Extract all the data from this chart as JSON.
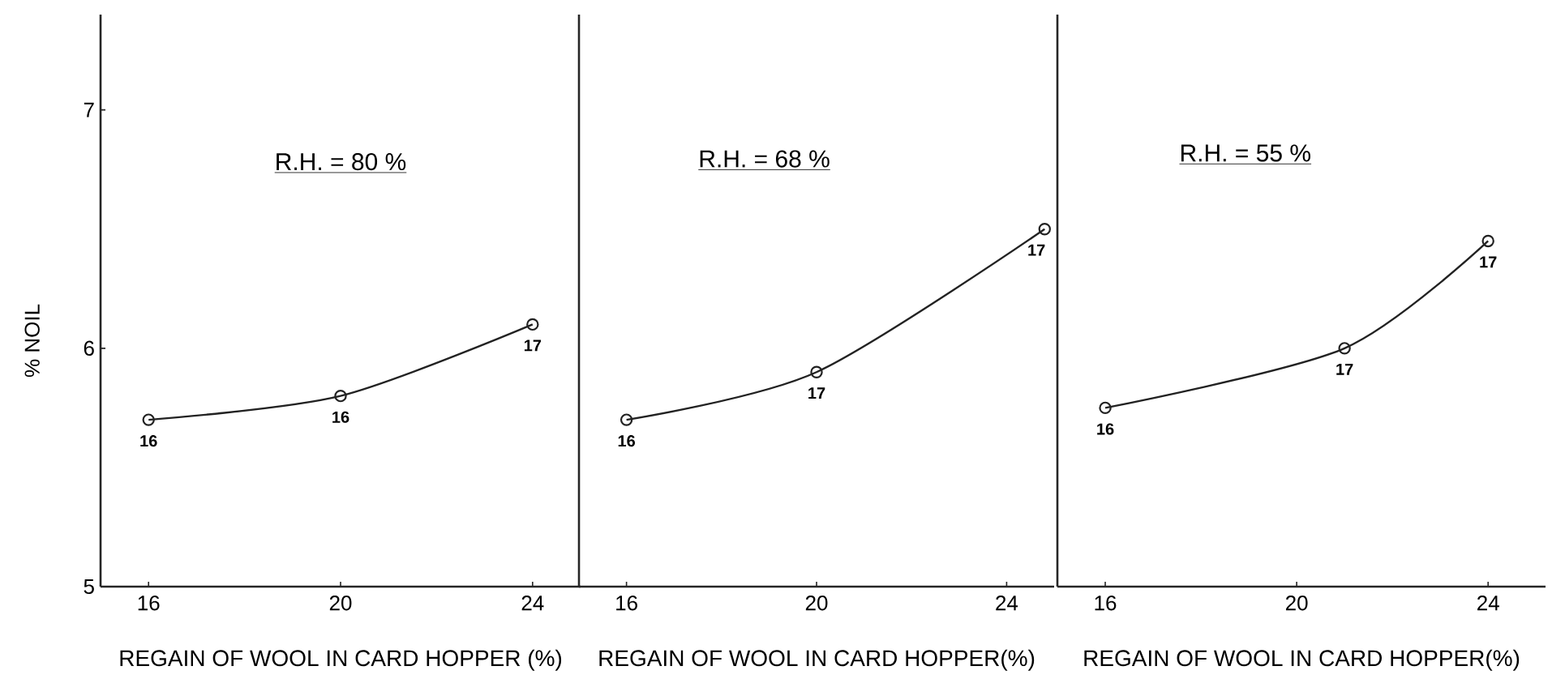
{
  "chart_data": [
    {
      "type": "line",
      "x": [
        16,
        20,
        24
      ],
      "values": [
        5.7,
        5.8,
        6.1
      ],
      "color": "#222222",
      "marker": "circle",
      "xlim": [
        15,
        25
      ],
      "xticks": [
        16,
        20,
        24
      ],
      "ylim": [
        5,
        7.4
      ],
      "yticks": [
        5,
        6,
        7
      ],
      "xlabel": "REGAIN OF WOOL IN CARD HOPPER (%)",
      "ylabel": "% NOIL",
      "annotations": [
        "R.H. = 80 %",
        {
          "text": "16",
          "x": 16,
          "y": 5.7
        },
        {
          "text": "16",
          "x": 20,
          "y": 5.8
        },
        {
          "text": "17",
          "x": 24,
          "y": 6.1
        }
      ]
    },
    {
      "type": "line",
      "x": [
        16,
        20,
        24.8
      ],
      "values": [
        5.7,
        5.9,
        6.5
      ],
      "color": "#222222",
      "marker": "circle",
      "xlim": [
        15,
        25
      ],
      "xticks": [
        16,
        20,
        24
      ],
      "ylim": [
        5,
        7.4
      ],
      "tick_labels": "x",
      "xlabel": "REGAIN OF WOOL IN CARD HOPPER(%)",
      "annotations": [
        "R.H. = 68 %",
        {
          "text": "16",
          "x": 16,
          "y": 5.7
        },
        {
          "text": "17",
          "x": 20,
          "y": 5.9
        },
        {
          "text": "17",
          "x": 24.8,
          "y": 6.5
        }
      ]
    },
    {
      "type": "line",
      "x": [
        16,
        21,
        24
      ],
      "values": [
        5.75,
        6.0,
        6.45
      ],
      "color": "#222222",
      "marker": "circle",
      "xlim": [
        15,
        25.2
      ],
      "xticks": [
        16,
        20,
        24
      ],
      "ylim": [
        5,
        7.4
      ],
      "tick_labels": "x",
      "xlabel": "REGAIN OF WOOL IN CARD HOPPER(%)",
      "annotations": [
        "R.H. = 55 %",
        {
          "text": "16",
          "x": 16,
          "y": 5.75
        },
        {
          "text": "17",
          "x": 21,
          "y": 6.0
        },
        {
          "text": "17",
          "x": 24,
          "y": 6.45
        }
      ]
    }
  ]
}
